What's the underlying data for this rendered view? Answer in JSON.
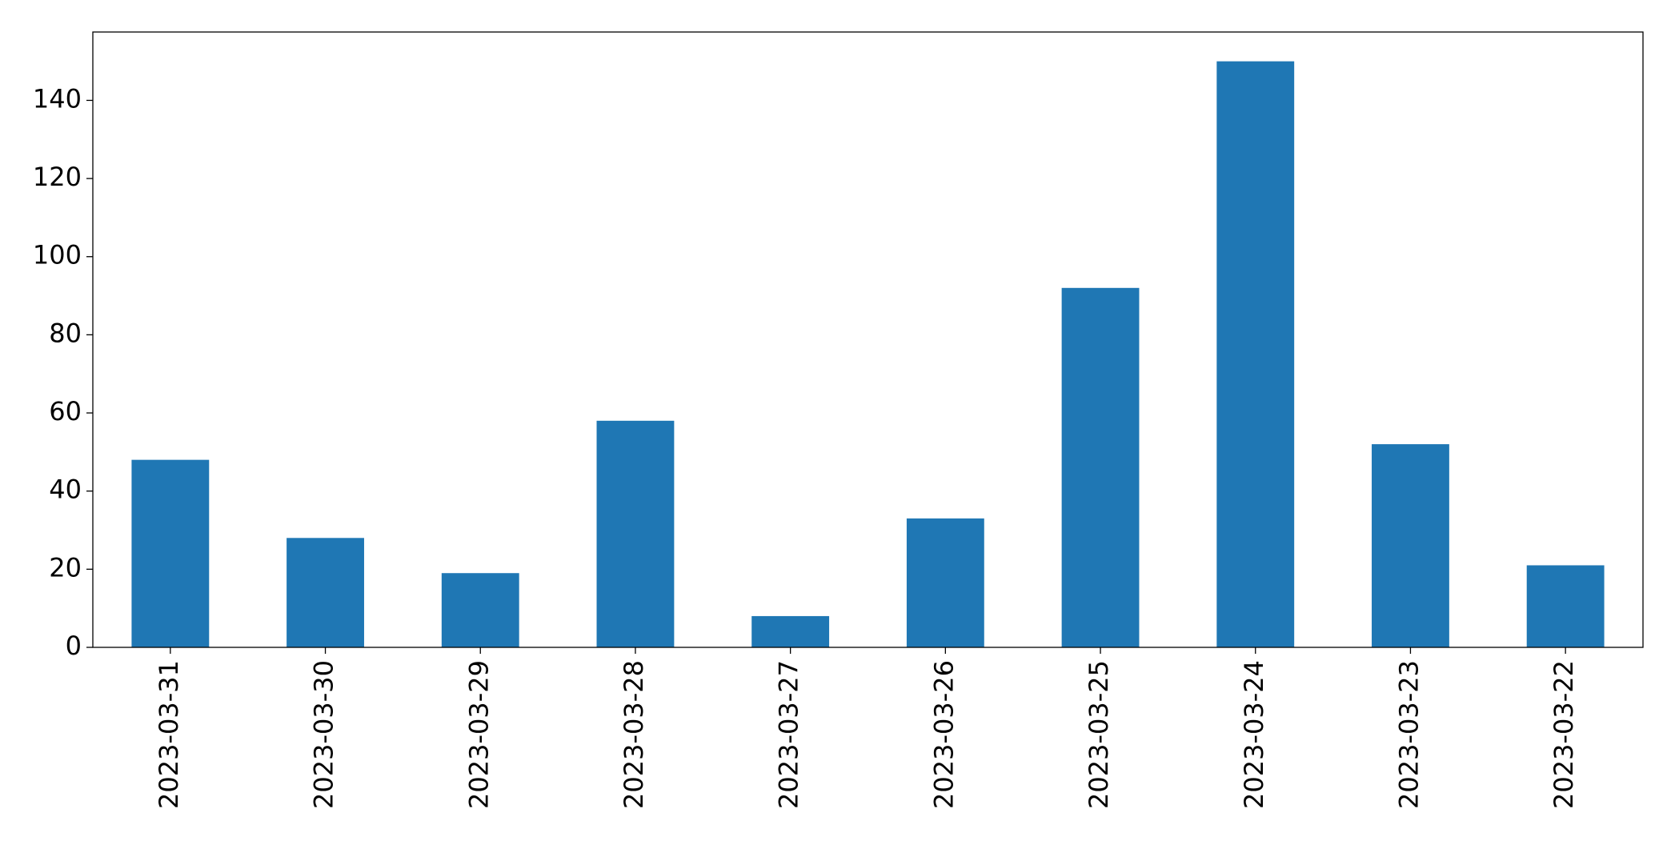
{
  "chart_data": {
    "type": "bar",
    "categories": [
      "2023-03-31",
      "2023-03-30",
      "2023-03-29",
      "2023-03-28",
      "2023-03-27",
      "2023-03-26",
      "2023-03-25",
      "2023-03-24",
      "2023-03-23",
      "2023-03-22"
    ],
    "values": [
      48,
      28,
      19,
      58,
      8,
      33,
      92,
      150,
      52,
      21
    ],
    "color": "#1f77b4",
    "ylim": [
      0,
      157.5
    ],
    "yticks": [
      0,
      20,
      40,
      60,
      80,
      100,
      120,
      140
    ],
    "grid": false
  }
}
